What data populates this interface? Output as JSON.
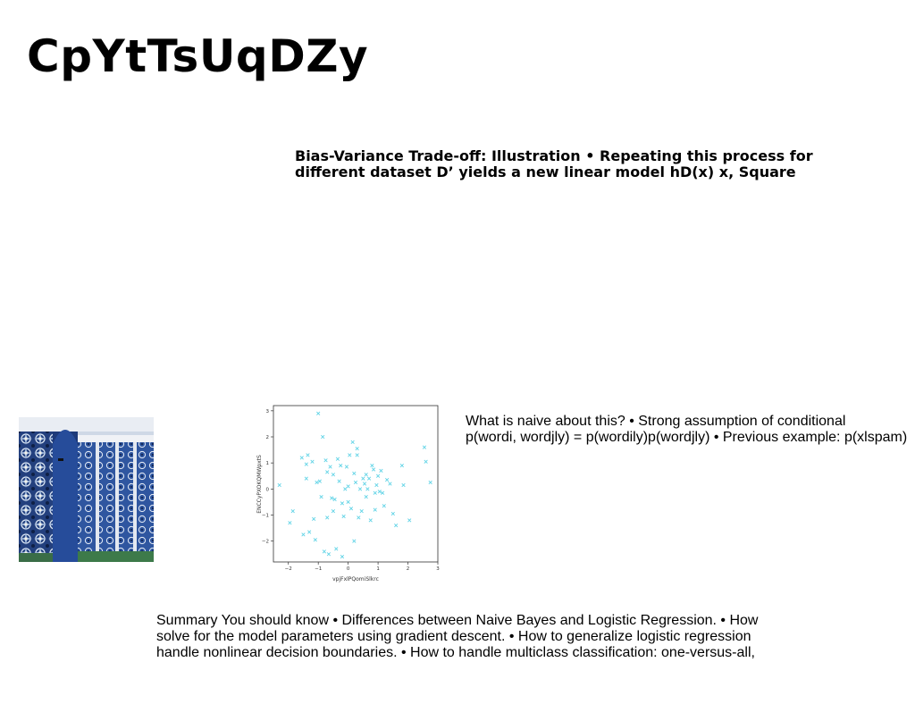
{
  "page": {
    "title": "CpYtTsUqDZy"
  },
  "blocks": {
    "bias_variance": "Bias-Variance Trade-off: Illustration • Repeating this process for different dataset D’ yields a new linear model hD(x) x, Square",
    "naive": "What is naive about this? • Strong assumption of conditional\np(wordi, wordjly) = p(wordily)p(wordjly) • Previous example: p(xlspam)",
    "summary": "Summary You should know • Differences between Naive Bayes and Logistic Regression. • How\nsolve for the model parameters using gradient descent. • How to generalize logistic regression\nhandle nonlinear decision boundaries. • How to handle multiclass classification: one-versus-all,"
  },
  "photo": {
    "kind": "photograph of blue patterned mosaic tile wall"
  },
  "chart_data": {
    "type": "scatter",
    "xlabel": "vpjFxlPQomiSlkrc",
    "ylabel": "ENCCyPXOKQMWpxtS",
    "xlim": [
      -2.5,
      3.0
    ],
    "ylim": [
      -2.8,
      3.2
    ],
    "xticks": [
      -2,
      -1,
      0,
      1,
      2,
      3
    ],
    "yticks": [
      -2,
      -1,
      0,
      1,
      2,
      3
    ],
    "marker": "x",
    "color": "#5fd3e6",
    "x": [
      -2.3,
      -1.95,
      -1.85,
      -1.55,
      -1.5,
      -1.4,
      -1.35,
      -1.3,
      -1.2,
      -1.15,
      -1.05,
      -1.0,
      -0.95,
      -0.9,
      -0.85,
      -0.8,
      -0.75,
      -0.7,
      -0.65,
      -0.6,
      -0.55,
      -0.5,
      -0.45,
      -0.4,
      -0.35,
      -0.3,
      -0.25,
      -0.2,
      -0.15,
      -0.1,
      -0.05,
      0.0,
      0.05,
      0.1,
      0.15,
      0.2,
      0.25,
      0.3,
      0.35,
      0.4,
      0.45,
      0.5,
      0.55,
      0.6,
      0.65,
      0.7,
      0.75,
      0.8,
      0.85,
      0.9,
      0.95,
      1.0,
      1.05,
      1.1,
      1.15,
      1.2,
      1.3,
      1.5,
      1.6,
      1.8,
      1.85,
      2.05,
      2.55,
      2.6,
      2.75,
      -1.4,
      -0.7,
      0.3,
      0.9,
      -0.2,
      0.6,
      -1.1,
      0.0,
      1.4,
      -0.5,
      0.2
    ],
    "y": [
      0.15,
      -1.3,
      -0.85,
      1.2,
      -1.75,
      0.4,
      1.3,
      -1.65,
      1.05,
      -1.15,
      0.25,
      2.9,
      0.3,
      -0.3,
      2.0,
      -2.4,
      1.1,
      -1.1,
      -2.5,
      0.85,
      -0.35,
      0.55,
      -0.4,
      -2.3,
      1.15,
      0.3,
      0.9,
      -0.55,
      -1.05,
      0.0,
      0.85,
      -0.5,
      1.3,
      -0.75,
      1.8,
      -2.0,
      0.25,
      1.3,
      -1.1,
      0.0,
      -0.85,
      0.4,
      0.2,
      -0.3,
      0.0,
      0.4,
      -1.2,
      0.9,
      0.75,
      -0.8,
      0.15,
      0.5,
      -0.1,
      0.7,
      -0.15,
      -0.65,
      0.35,
      -0.95,
      -1.4,
      0.9,
      0.15,
      -1.2,
      1.6,
      1.05,
      0.25,
      0.95,
      0.65,
      1.55,
      -0.15,
      -2.6,
      0.55,
      -1.95,
      0.1,
      0.2,
      -0.85,
      0.6
    ]
  }
}
